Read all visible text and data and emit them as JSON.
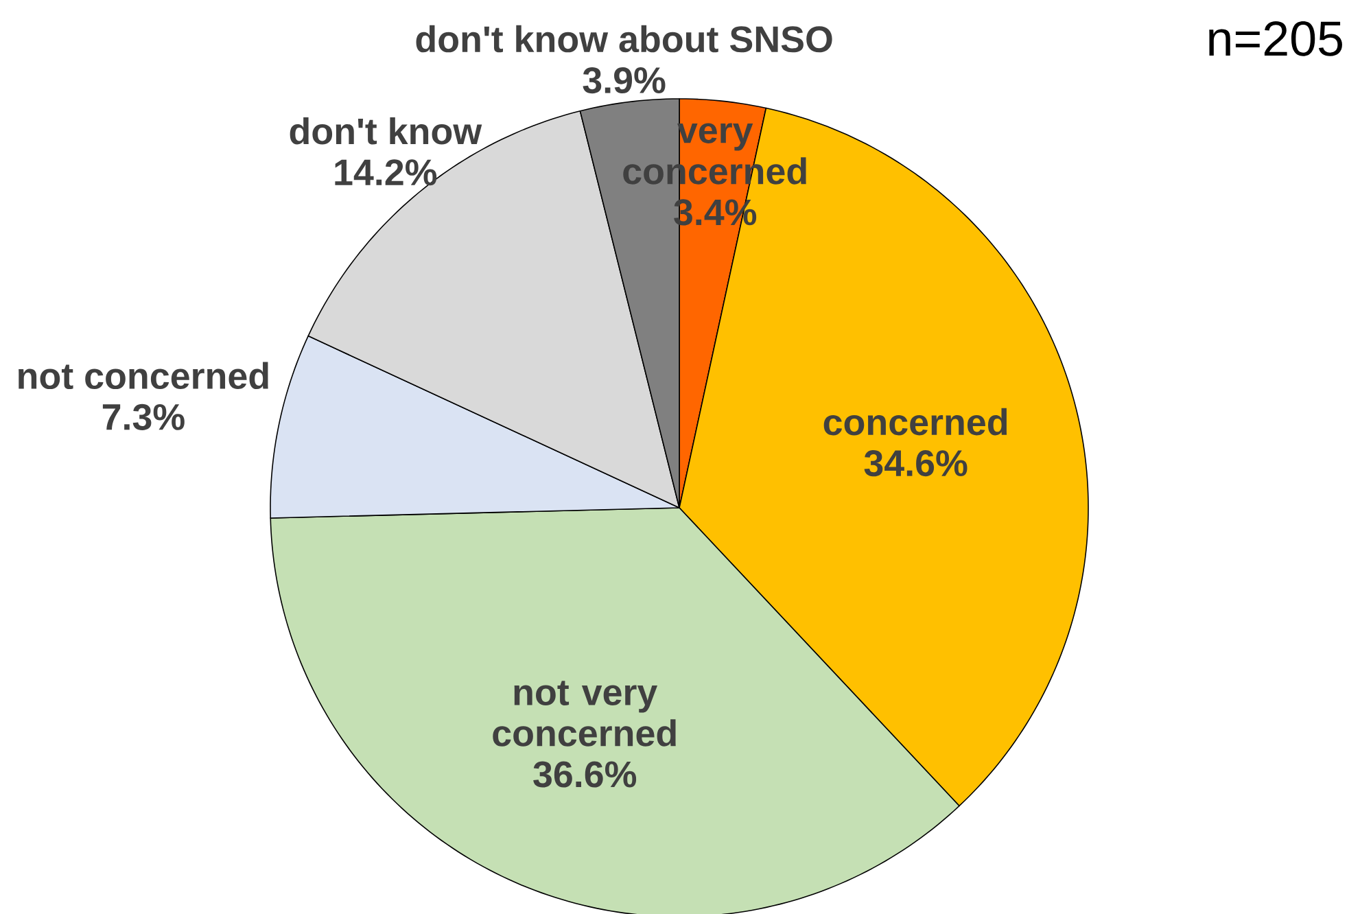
{
  "chart_data": {
    "type": "pie",
    "categories": [
      "very concerned",
      "concerned",
      "not very concerned",
      "not concerned",
      "don't know",
      "don't know about SNSO"
    ],
    "values": [
      3.4,
      34.6,
      36.6,
      7.3,
      14.2,
      3.9
    ],
    "value_labels": [
      "3.4%",
      "34.6%",
      "36.6%",
      "7.3%",
      "14.2%",
      "3.9%"
    ],
    "colors": [
      "#ff6600",
      "#ffc000",
      "#c5e0b4",
      "#dae3f3",
      "#d9d9d9",
      "#808080"
    ],
    "annotations": [
      "n=205"
    ],
    "legend": false
  }
}
